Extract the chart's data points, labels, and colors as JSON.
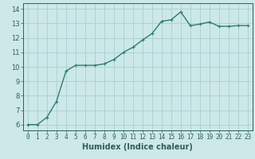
{
  "x": [
    0,
    1,
    2,
    3,
    4,
    5,
    6,
    7,
    8,
    9,
    10,
    11,
    12,
    13,
    14,
    15,
    16,
    17,
    18,
    19,
    20,
    21,
    22,
    23
  ],
  "y": [
    6.0,
    6.0,
    6.5,
    7.6,
    9.7,
    10.1,
    10.1,
    10.1,
    10.2,
    10.5,
    11.0,
    11.35,
    11.85,
    12.3,
    13.15,
    13.25,
    13.8,
    12.85,
    12.95,
    13.1,
    12.8,
    12.8,
    12.85,
    12.85
  ],
  "line_color": "#2e7d6e",
  "marker": "+",
  "marker_size": 3,
  "bg_color": "#cce8e8",
  "grid_color": "#aad0d0",
  "tick_color": "#2e5f5a",
  "xlabel": "Humidex (Indice chaleur)",
  "xlabel_fontsize": 7,
  "ylabel_ticks": [
    6,
    7,
    8,
    9,
    10,
    11,
    12,
    13,
    14
  ],
  "xlim": [
    -0.5,
    23.5
  ],
  "ylim": [
    5.6,
    14.4
  ],
  "line_width": 1.0,
  "marker_color": "#2e7d6e",
  "tick_fontsize": 5.5,
  "ylabel_fontsize": 6
}
